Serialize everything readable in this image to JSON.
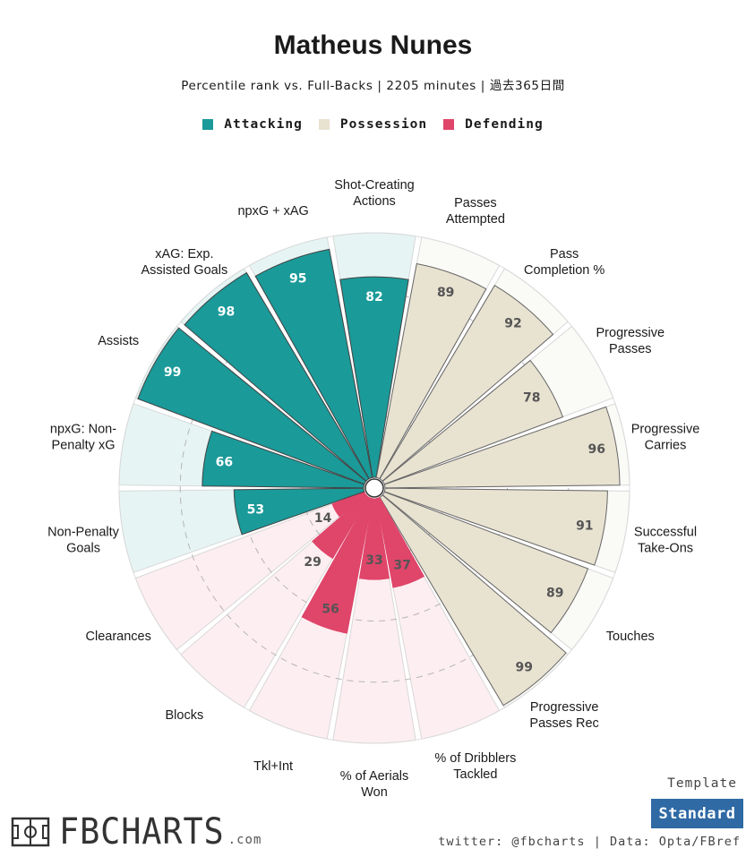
{
  "title": "Matheus Nunes",
  "subtitle": "Percentile rank vs. Full-Backs | 2205 minutes | 過去365日間",
  "legend": [
    {
      "label": "Attacking",
      "color": "#1a9a99"
    },
    {
      "label": "Possession",
      "color": "#e8e2d1"
    },
    {
      "label": "Defending",
      "color": "#e0456a"
    }
  ],
  "template": {
    "label": "Template",
    "button": "Standard"
  },
  "logo": {
    "text": "FBCHARTS",
    "suffix": ".com"
  },
  "credits": "twitter: @fbcharts | Data: Opta/FBref",
  "chart_data": {
    "type": "radar",
    "title": "Matheus Nunes",
    "subtitle": "Percentile rank vs. Full-Backs | 2205 minutes | 過去365日間",
    "range": [
      0,
      100
    ],
    "gridlines": [
      25,
      50,
      75
    ],
    "series": [
      {
        "name": "Attacking",
        "color": "#1a9a99",
        "bg": "#e6f4f4",
        "stroke": "#444444",
        "label_color": "#ffffff"
      },
      {
        "name": "Possession",
        "color": "#e8e2d1",
        "bg": "#fafaf7",
        "stroke": "#666666",
        "label_color": "#555555"
      },
      {
        "name": "Defending",
        "color": "#e0456a",
        "bg": "#fdeef1",
        "stroke": "#e0456a",
        "label_color": "#555555"
      }
    ],
    "categories": [
      {
        "label": "Shot-Creating\nActions",
        "value": 82,
        "group": "Attacking"
      },
      {
        "label": "Passes\nAttempted",
        "value": 89,
        "group": "Possession"
      },
      {
        "label": "Pass\nCompletion %",
        "value": 92,
        "group": "Possession"
      },
      {
        "label": "Progressive\nPasses",
        "value": 78,
        "group": "Possession"
      },
      {
        "label": "Progressive\nCarries",
        "value": 96,
        "group": "Possession"
      },
      {
        "label": "Successful\nTake-Ons",
        "value": 91,
        "group": "Possession"
      },
      {
        "label": "Touches",
        "value": 89,
        "group": "Possession"
      },
      {
        "label": "Progressive\nPasses Rec",
        "value": 99,
        "group": "Possession"
      },
      {
        "label": "% of Dribblers\nTackled",
        "value": 37,
        "group": "Defending"
      },
      {
        "label": "% of Aerials\nWon",
        "value": 33,
        "group": "Defending"
      },
      {
        "label": "Tkl+Int",
        "value": 56,
        "group": "Defending"
      },
      {
        "label": "Blocks",
        "value": 29,
        "group": "Defending"
      },
      {
        "label": "Clearances",
        "value": 14,
        "group": "Defending"
      },
      {
        "label": "Non-Penalty\nGoals",
        "value": 53,
        "group": "Attacking"
      },
      {
        "label": "npxG: Non-\nPenalty xG",
        "value": 66,
        "group": "Attacking"
      },
      {
        "label": "Assists",
        "value": 99,
        "group": "Attacking"
      },
      {
        "label": "xAG: Exp.\nAssisted Goals",
        "value": 98,
        "group": "Attacking"
      },
      {
        "label": "npxG + xAG",
        "value": 95,
        "group": "Attacking"
      }
    ]
  }
}
